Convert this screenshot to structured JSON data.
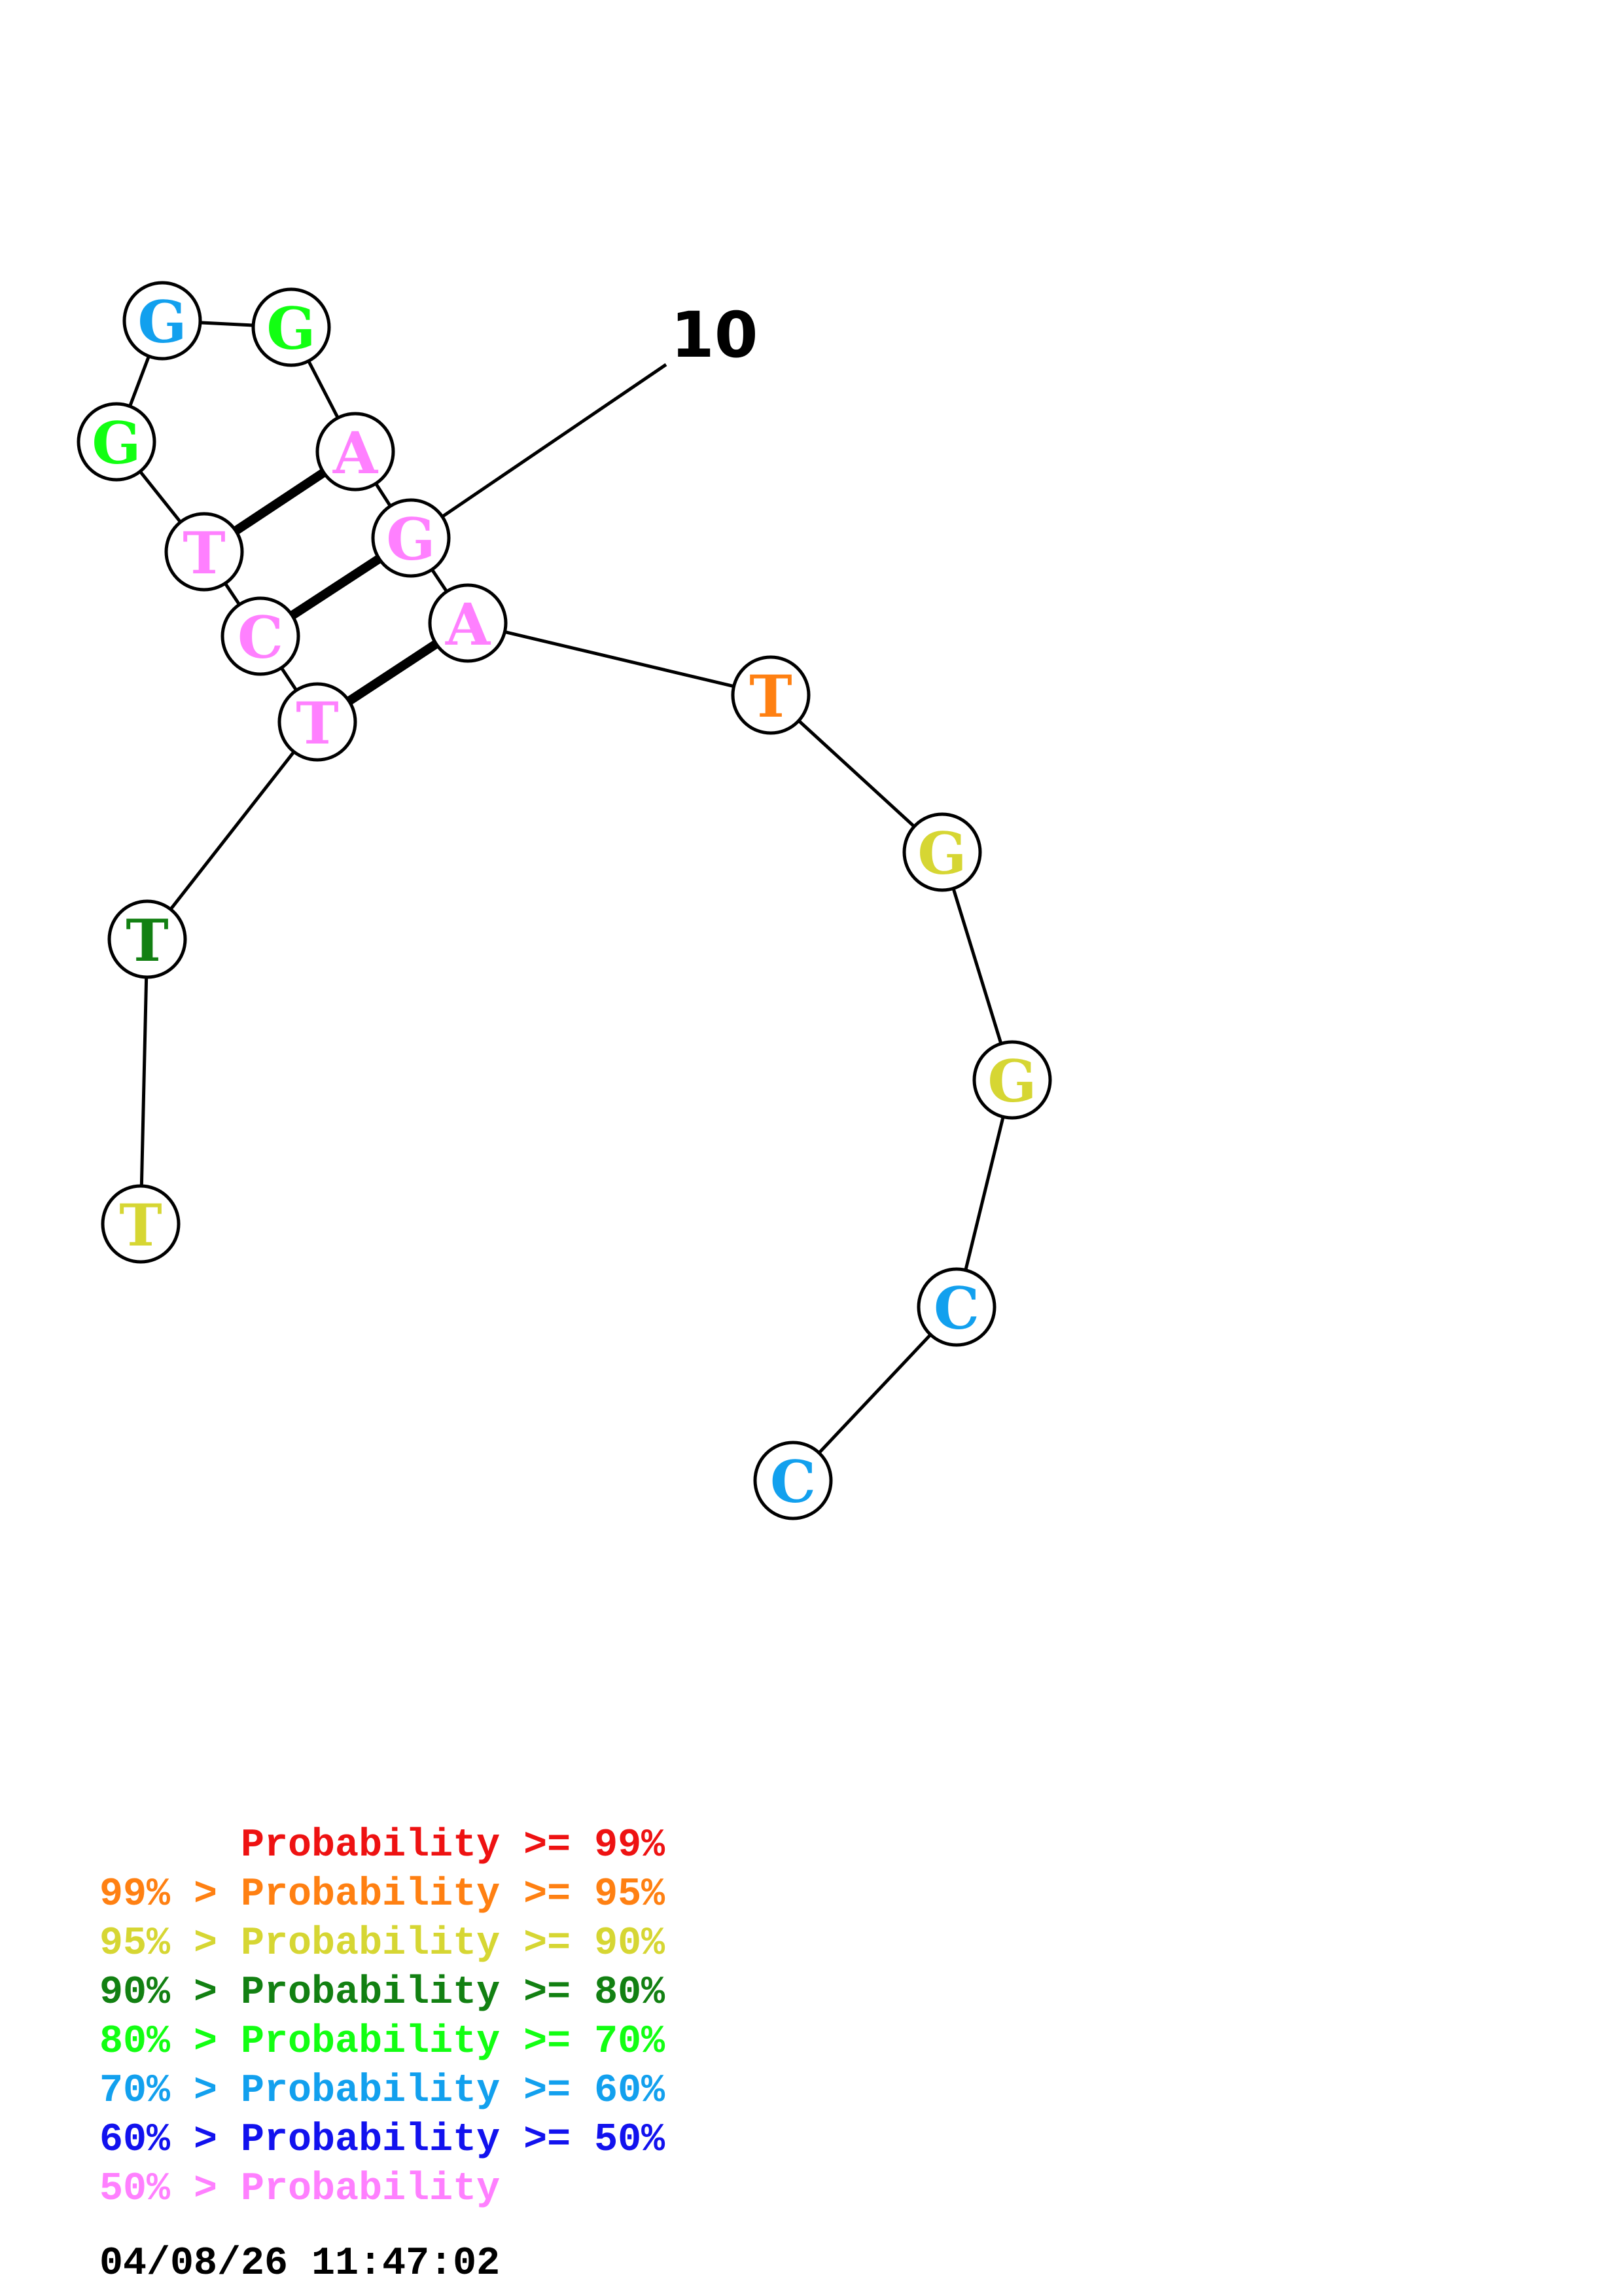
{
  "structure": {
    "index_label": "10",
    "bases": [
      {
        "letter": "T",
        "color": "#d6d633"
      },
      {
        "letter": "T",
        "color": "#128012"
      },
      {
        "letter": "T",
        "color": "#ff80ff"
      },
      {
        "letter": "C",
        "color": "#ff80ff"
      },
      {
        "letter": "T",
        "color": "#ff80ff"
      },
      {
        "letter": "G",
        "color": "#12ff12"
      },
      {
        "letter": "G",
        "color": "#12a0ee"
      },
      {
        "letter": "G",
        "color": "#12ff12"
      },
      {
        "letter": "A",
        "color": "#ff80ff"
      },
      {
        "letter": "G",
        "color": "#ff80ff"
      },
      {
        "letter": "A",
        "color": "#ff80ff"
      },
      {
        "letter": "T",
        "color": "#ff8012"
      },
      {
        "letter": "G",
        "color": "#d6d633"
      },
      {
        "letter": "G",
        "color": "#d6d633"
      },
      {
        "letter": "C",
        "color": "#12a0ee"
      },
      {
        "letter": "C",
        "color": "#12a0ee"
      }
    ],
    "pairs": [
      [
        3,
        11
      ],
      [
        4,
        10
      ],
      [
        5,
        9
      ]
    ],
    "index_marker_base": 10
  },
  "legend": [
    {
      "text": "      Probability >= 99%",
      "color": "#ee1212"
    },
    {
      "text": "99% > Probability >= 95%",
      "color": "#ff8012"
    },
    {
      "text": "95% > Probability >= 90%",
      "color": "#d6d633"
    },
    {
      "text": "90% > Probability >= 80%",
      "color": "#128012"
    },
    {
      "text": "80% > Probability >= 70%",
      "color": "#12ff12"
    },
    {
      "text": "70% > Probability >= 60%",
      "color": "#12a0ee"
    },
    {
      "text": "60% > Probability >= 50%",
      "color": "#1212ee"
    },
    {
      "text": "50% > Probability",
      "color": "#ff80ff"
    }
  ],
  "timestamp": "04/08/26 11:47:02"
}
